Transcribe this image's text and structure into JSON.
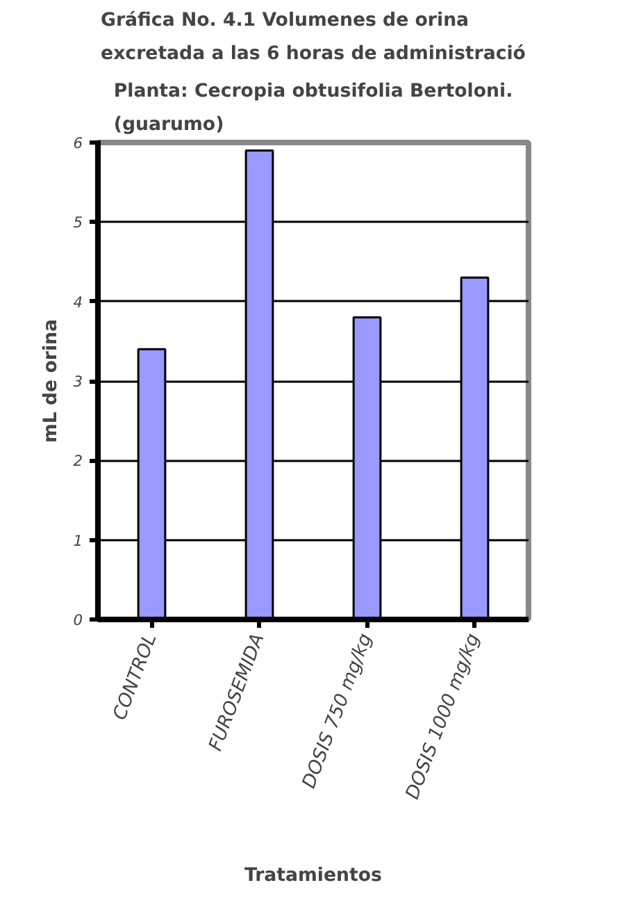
{
  "chart_data": {
    "type": "bar",
    "title": "Gráfica No. 4.1  Volumenes de orina\nexcretada a las 6 horas de administració",
    "subtitle": "Planta: Cecropia obtusifolia Bertoloni.\n(guarumo)",
    "xlabel": "Tratamientos",
    "ylabel": "mL de orina",
    "categories": [
      "CONTROL",
      "FUROSEMIDA",
      "DOSIS 750 mg/kg",
      "DOSIS 1000 mg/kg"
    ],
    "values": [
      3.4,
      5.9,
      3.8,
      4.3
    ],
    "color": "#9999ff",
    "ylim": [
      0,
      6
    ],
    "yticks": [
      0,
      1,
      2,
      3,
      4,
      5,
      6
    ],
    "grid": "y"
  }
}
